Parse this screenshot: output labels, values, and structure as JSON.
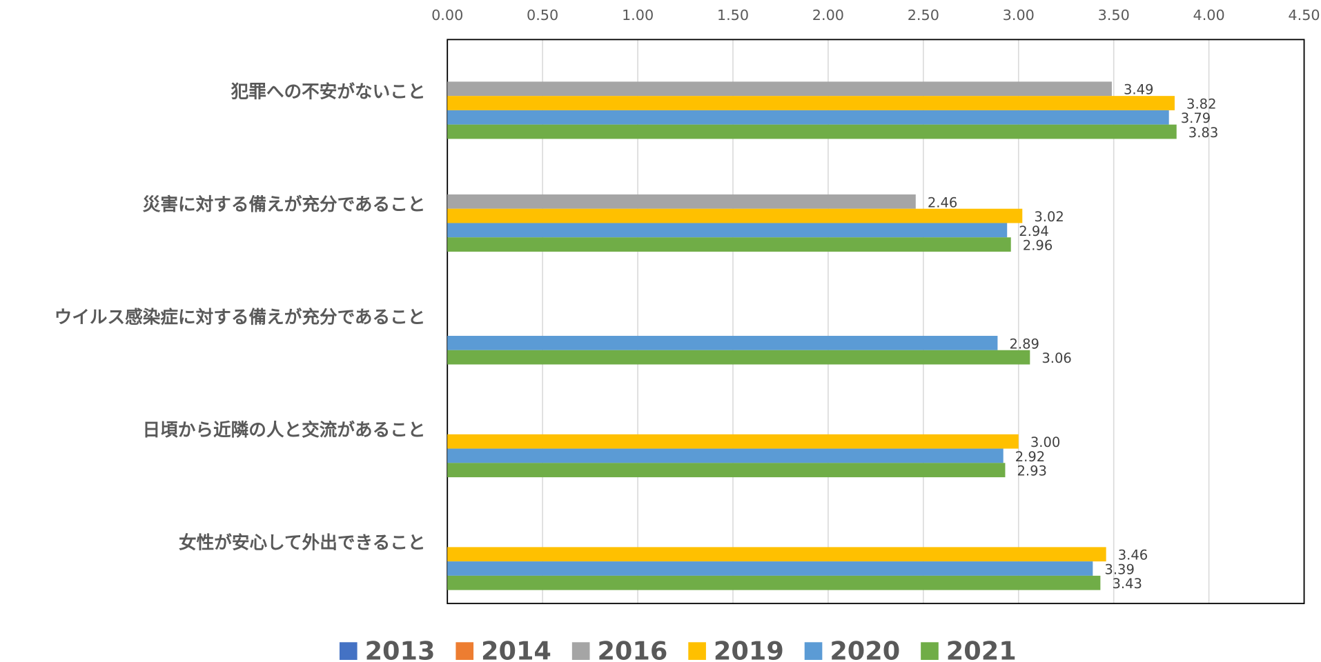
{
  "chart_data": {
    "type": "bar",
    "orientation": "horizontal",
    "categories": [
      "犯罪への不安がないこと",
      "災害に対する備えが充分であること",
      "ウイルス感染症に対する備えが充分であること",
      "日頃から近隣の人と交流があること",
      "女性が安心して外出できること"
    ],
    "series": [
      {
        "name": "2013",
        "color": "#4472c4",
        "values": [
          null,
          null,
          null,
          null,
          null
        ],
        "value_labels": [
          null,
          null,
          null,
          null,
          null
        ]
      },
      {
        "name": "2014",
        "color": "#ed7d31",
        "values": [
          null,
          null,
          null,
          null,
          null
        ],
        "value_labels": [
          null,
          null,
          null,
          null,
          null
        ]
      },
      {
        "name": "2016",
        "color": "#a5a5a5",
        "values": [
          3.49,
          2.46,
          null,
          null,
          null
        ],
        "value_labels": [
          "3.49",
          "2.46",
          null,
          null,
          null
        ]
      },
      {
        "name": "2019",
        "color": "#ffc000",
        "values": [
          3.82,
          3.02,
          null,
          3.0,
          3.46
        ],
        "value_labels": [
          "3.82",
          "3.02",
          null,
          "3.00",
          "3.46"
        ]
      },
      {
        "name": "2020",
        "color": "#5b9bd5",
        "values": [
          3.79,
          2.94,
          2.89,
          2.92,
          3.39
        ],
        "value_labels": [
          "3.79",
          "2.94",
          "2.89",
          "2.92",
          "3.39"
        ]
      },
      {
        "name": "2021",
        "color": "#70ad47",
        "values": [
          3.83,
          2.96,
          3.06,
          2.93,
          3.43
        ],
        "value_labels": [
          "3.83",
          "2.96",
          "3.06",
          "2.93",
          "3.43"
        ]
      }
    ],
    "xlim": [
      0,
      4.5
    ],
    "xticks": [
      {
        "value": 0,
        "label": "0.00"
      },
      {
        "value": 0.5,
        "label": "0.50"
      },
      {
        "value": 1,
        "label": "1.00"
      },
      {
        "value": 1.5,
        "label": "1.50"
      },
      {
        "value": 2,
        "label": "2.00"
      },
      {
        "value": 2.5,
        "label": "2.50"
      },
      {
        "value": 3,
        "label": "3.00"
      },
      {
        "value": 3.5,
        "label": "3.50"
      },
      {
        "value": 4,
        "label": "4.00"
      },
      {
        "value": 4.5,
        "label": "4.50"
      }
    ],
    "grid": true,
    "legend": "bottom"
  }
}
